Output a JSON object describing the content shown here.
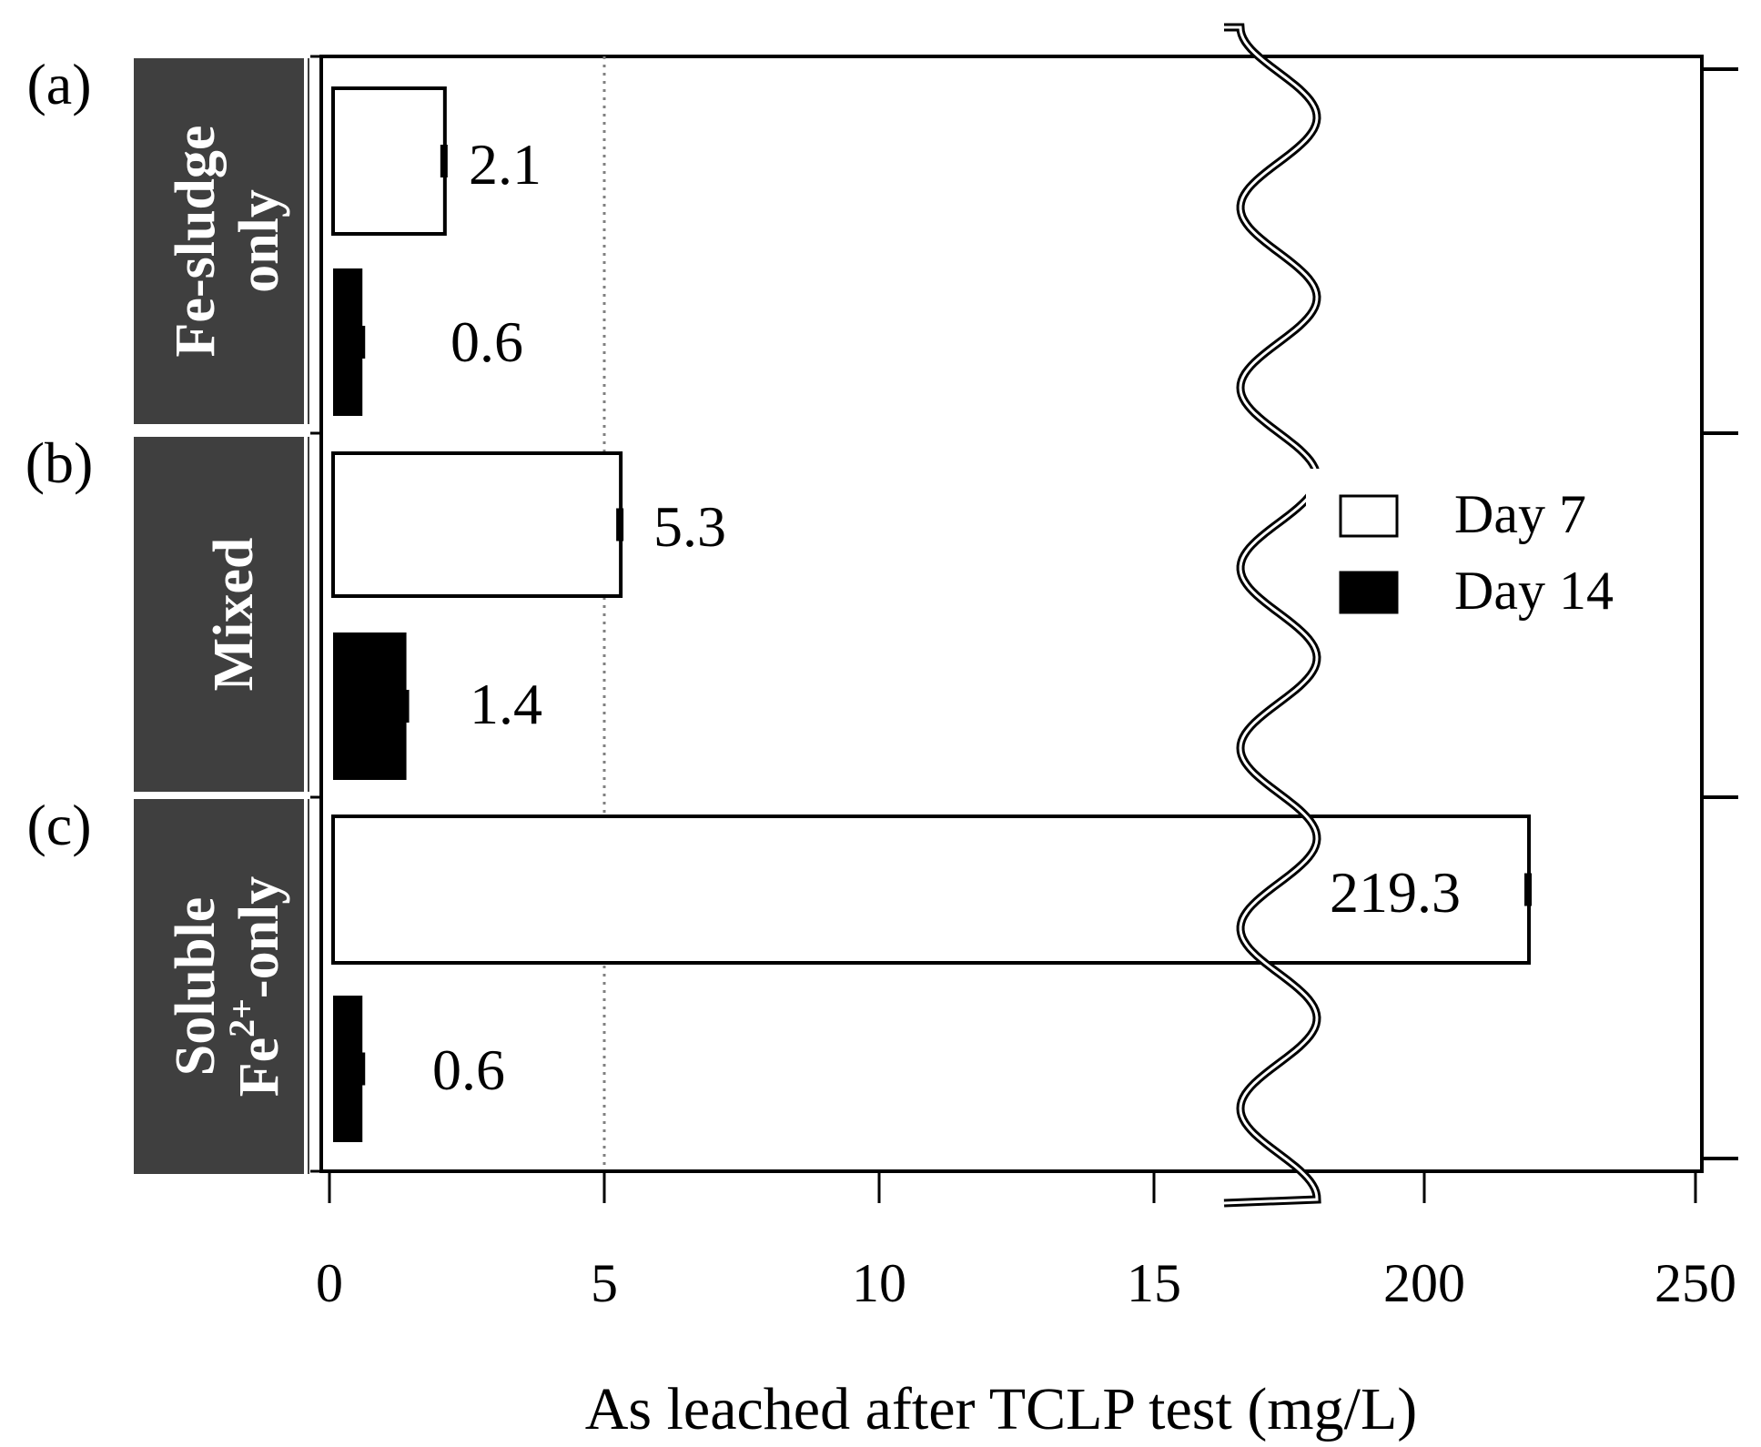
{
  "chart_data": {
    "type": "bar",
    "orientation": "horizontal",
    "title": "",
    "xlabel": "As leached after TCLP test (mg/L)",
    "ylabel": "",
    "axis_break": {
      "from": 16.5,
      "to": 180
    },
    "x_ticks": [
      {
        "value": 0,
        "label": "0"
      },
      {
        "value": 5,
        "label": "5"
      },
      {
        "value": 10,
        "label": "10"
      },
      {
        "value": 15,
        "label": "15"
      },
      {
        "value": 200,
        "label": "200"
      },
      {
        "value": 250,
        "label": "250"
      }
    ],
    "reference_line": {
      "value": 5,
      "style": "dotted"
    },
    "groups": [
      {
        "panel": "(a)",
        "label_lines": [
          "Fe-sludge",
          "only"
        ],
        "label_sup": ""
      },
      {
        "panel": "(b)",
        "label_lines": [
          "Mixed"
        ],
        "label_sup": ""
      },
      {
        "panel": "(c)",
        "label_lines": [
          "Soluble",
          "Fe",
          "-only"
        ],
        "label_sup": "2+"
      }
    ],
    "series": [
      {
        "name": "Day 7",
        "fill": "#ffffff",
        "values": [
          2.1,
          5.3,
          219.3
        ],
        "labels": [
          "2.1",
          "5.3",
          "219.3"
        ]
      },
      {
        "name": "Day 14",
        "fill": "#000000",
        "values": [
          0.6,
          1.4,
          0.6
        ],
        "labels": [
          "0.6",
          "1.4",
          "0.6"
        ]
      }
    ],
    "legend": {
      "position": "right",
      "entries": [
        "Day 7",
        "Day 14"
      ]
    }
  },
  "colors": {
    "label_box": "#3f3f3f",
    "label_text": "#ffffff",
    "axis": "#000000",
    "dotted_line": "#808080"
  }
}
